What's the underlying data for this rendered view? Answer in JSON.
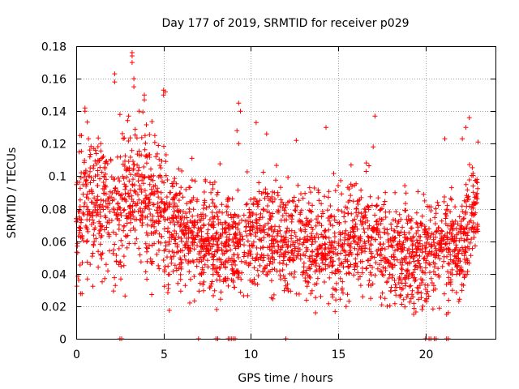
{
  "chart_data": {
    "type": "scatter",
    "title": "Day 177 of 2019, SRMTID for receiver p029",
    "xlabel": "GPS time / hours",
    "ylabel": "SRMTID / TECUs",
    "xlim": [
      0,
      24
    ],
    "ylim": [
      0,
      0.18
    ],
    "xticks": [
      0,
      5,
      10,
      15,
      20
    ],
    "xtick_labels": [
      "0",
      "5",
      "10",
      "15",
      "20"
    ],
    "yticks": [
      0,
      0.02,
      0.04,
      0.06,
      0.08,
      0.1,
      0.12,
      0.14,
      0.16,
      0.18
    ],
    "ytick_labels": [
      "0",
      "0.02",
      "0.04",
      "0.06",
      "0.08",
      "0.1",
      "0.12",
      "0.14",
      "0.16",
      "0.18"
    ],
    "grid": true,
    "marker": "+",
    "series": [
      {
        "name": "SRMTID",
        "color": "#ff0000",
        "x_end": 23.0,
        "trend": [
          [
            0.0,
            0.075
          ],
          [
            0.5,
            0.08
          ],
          [
            1.0,
            0.085
          ],
          [
            1.5,
            0.082
          ],
          [
            2.0,
            0.078
          ],
          [
            2.5,
            0.076
          ],
          [
            3.0,
            0.09
          ],
          [
            3.5,
            0.088
          ],
          [
            4.0,
            0.085
          ],
          [
            4.5,
            0.08
          ],
          [
            5.0,
            0.075
          ],
          [
            6.0,
            0.068
          ],
          [
            7.0,
            0.062
          ],
          [
            8.0,
            0.06
          ],
          [
            9.0,
            0.06
          ],
          [
            10.0,
            0.062
          ],
          [
            11.0,
            0.063
          ],
          [
            12.0,
            0.06
          ],
          [
            13.0,
            0.06
          ],
          [
            14.0,
            0.058
          ],
          [
            15.0,
            0.058
          ],
          [
            16.0,
            0.063
          ],
          [
            17.0,
            0.062
          ],
          [
            18.0,
            0.055
          ],
          [
            19.0,
            0.05
          ],
          [
            20.0,
            0.052
          ],
          [
            21.0,
            0.06
          ],
          [
            22.0,
            0.055
          ],
          [
            22.5,
            0.07
          ],
          [
            23.0,
            0.085
          ]
        ],
        "highlights": [
          [
            0.3,
            0.125
          ],
          [
            0.5,
            0.142
          ],
          [
            0.5,
            0.14
          ],
          [
            0.7,
            0.123
          ],
          [
            1.1,
            0.116
          ],
          [
            1.4,
            0.12
          ],
          [
            2.2,
            0.163
          ],
          [
            2.2,
            0.158
          ],
          [
            2.5,
            0.138
          ],
          [
            3.0,
            0.137
          ],
          [
            3.2,
            0.174
          ],
          [
            3.2,
            0.176
          ],
          [
            3.2,
            0.17
          ],
          [
            3.3,
            0.16
          ],
          [
            3.3,
            0.155
          ],
          [
            3.6,
            0.14
          ],
          [
            3.9,
            0.15
          ],
          [
            3.9,
            0.147
          ],
          [
            4.5,
            0.125
          ],
          [
            5.0,
            0.153
          ],
          [
            5.0,
            0.15
          ],
          [
            5.1,
            0.152
          ],
          [
            9.3,
            0.145
          ],
          [
            9.4,
            0.14
          ],
          [
            9.2,
            0.128
          ],
          [
            9.3,
            0.12
          ],
          [
            10.3,
            0.133
          ],
          [
            10.9,
            0.126
          ],
          [
            12.6,
            0.122
          ],
          [
            14.3,
            0.13
          ],
          [
            17.1,
            0.137
          ],
          [
            17.0,
            0.118
          ],
          [
            21.1,
            0.123
          ],
          [
            22.1,
            0.123
          ],
          [
            22.5,
            0.136
          ],
          [
            22.3,
            0.13
          ],
          [
            23.0,
            0.121
          ],
          [
            21.3,
            0.016
          ],
          [
            21.2,
            0.015
          ],
          [
            19.8,
            0.018
          ],
          [
            21.9,
            0.023
          ],
          [
            17.8,
            0.02
          ],
          [
            6.5,
            0.022
          ]
        ],
        "zero_points": [
          2.5,
          2.6,
          7.0,
          8.0,
          8.1,
          8.7,
          8.8,
          8.9,
          9.0,
          9.1,
          12.0,
          20.0,
          20.2,
          20.3,
          20.5,
          20.6,
          21.2,
          21.3
        ]
      }
    ]
  }
}
